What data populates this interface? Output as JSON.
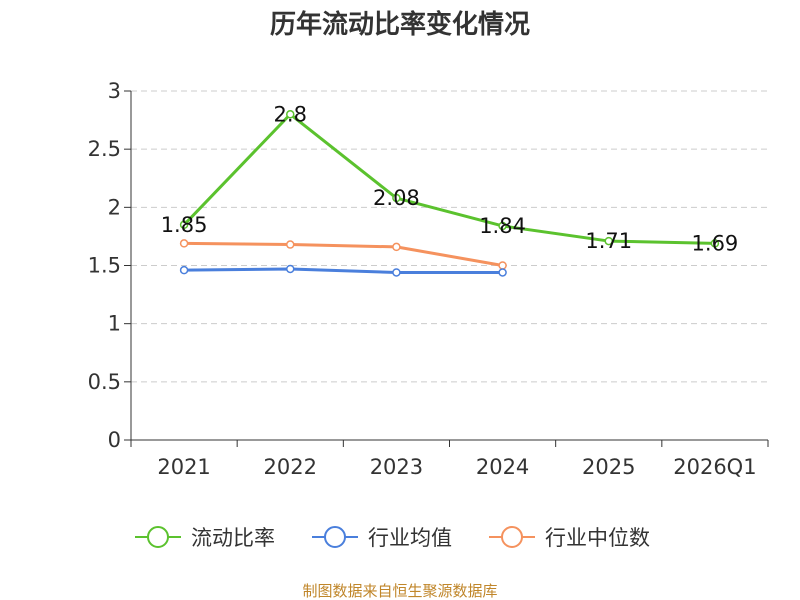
{
  "chart_data": {
    "type": "line",
    "title": "历年流动比率变化情况",
    "categories": [
      "2021",
      "2022",
      "2023",
      "2024",
      "2025",
      "2026Q1"
    ],
    "ylim": [
      0,
      3
    ],
    "yticks": [
      "0",
      "0.5",
      "1",
      "1.5",
      "2",
      "2.5",
      "3"
    ],
    "grid": true,
    "legend_position": "bottom",
    "series": [
      {
        "name": "流动比率",
        "color": "#5bc22e",
        "values": [
          1.85,
          2.8,
          2.08,
          1.84,
          1.71,
          1.69
        ],
        "labels": [
          "1.85",
          "2.8",
          "2.08",
          "1.84",
          "1.71",
          "1.69"
        ]
      },
      {
        "name": "行业均值",
        "color": "#4a7fdc",
        "values": [
          1.46,
          1.47,
          1.44,
          1.44,
          null,
          null
        ]
      },
      {
        "name": "行业中位数",
        "color": "#f5925e",
        "values": [
          1.69,
          1.68,
          1.66,
          1.5,
          null,
          null
        ]
      }
    ],
    "source": "制图数据来自恒生聚源数据库"
  }
}
